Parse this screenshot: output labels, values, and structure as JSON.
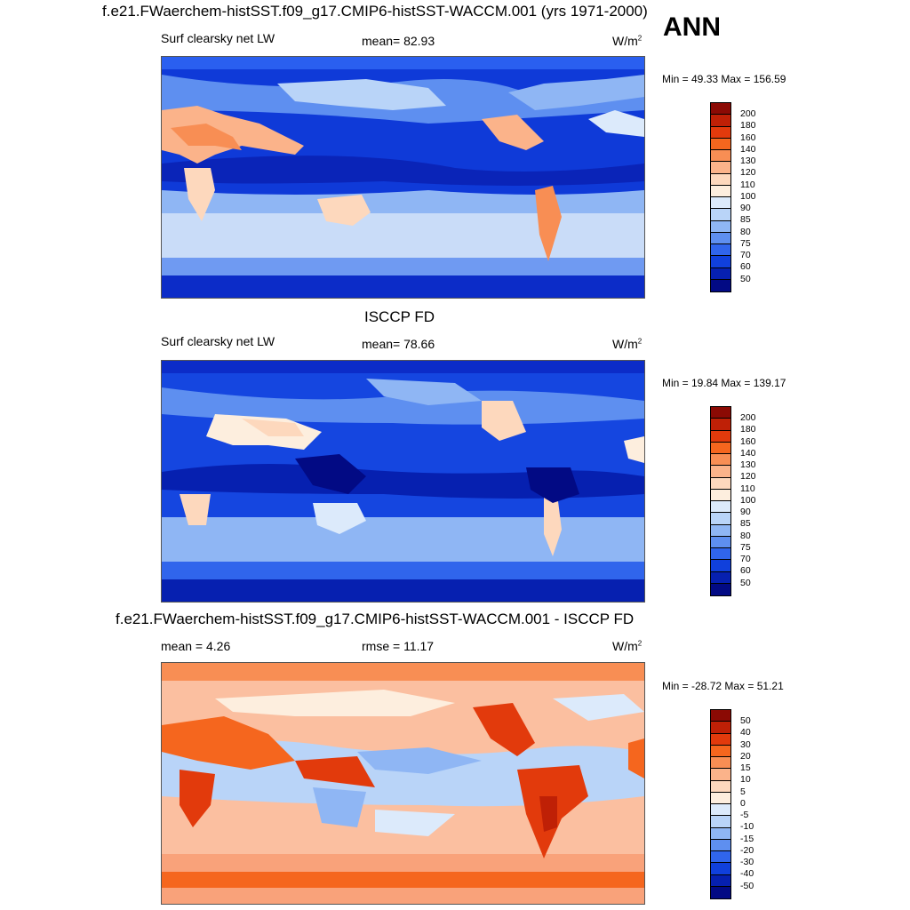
{
  "season": "ANN",
  "panels": [
    {
      "title": "f.e21.FWaerchem-histSST.f09_g17.CMIP6-histSST-WACCM.001 (yrs 1971-2000)",
      "left_label": "Surf clearsky net LW",
      "center_label": "mean=  82.93",
      "units": "W/m",
      "units_sup": "2",
      "minmax": "Min =  49.33 Max = 156.59",
      "colorbar_labels": [
        "200",
        "180",
        "160",
        "140",
        "130",
        "120",
        "110",
        "100",
        "90",
        "85",
        "80",
        "75",
        "70",
        "60",
        "50"
      ],
      "colorbar_colors": [
        "#8b0a04",
        "#bf2006",
        "#e23a0c",
        "#f5661e",
        "#f88e54",
        "#fbb38a",
        "#fdd8bd",
        "#fdeede",
        "#dceafb",
        "#b9d4f8",
        "#8fb6f4",
        "#5e8ff0",
        "#3065ec",
        "#1040dc",
        "#0620b0",
        "#020a84"
      ],
      "map_base": "#0f3ad8"
    },
    {
      "title": "ISCCP FD",
      "left_label": "Surf clearsky net LW",
      "center_label": "mean=  78.66",
      "units": "W/m",
      "units_sup": "2",
      "minmax": "Min =  19.84 Max = 139.17",
      "colorbar_labels": [
        "200",
        "180",
        "160",
        "140",
        "130",
        "120",
        "110",
        "100",
        "90",
        "85",
        "80",
        "75",
        "70",
        "60",
        "50"
      ],
      "colorbar_colors": [
        "#8b0a04",
        "#bf2006",
        "#e23a0c",
        "#f5661e",
        "#f88e54",
        "#fbb38a",
        "#fdd8bd",
        "#fdeede",
        "#dceafb",
        "#b9d4f8",
        "#8fb6f4",
        "#5e8ff0",
        "#3065ec",
        "#1040dc",
        "#0620b0",
        "#020a84"
      ],
      "map_base": "#1546e0"
    },
    {
      "title": "f.e21.FWaerchem-histSST.f09_g17.CMIP6-histSST-WACCM.001 - ISCCP FD",
      "left_label": "mean =   4.26",
      "center_label": "rmse =  11.17",
      "units": "W/m",
      "units_sup": "2",
      "minmax": "Min = -28.72 Max =  51.21",
      "colorbar_labels": [
        "50",
        "40",
        "30",
        "20",
        "15",
        "10",
        "5",
        "0",
        "-5",
        "-10",
        "-15",
        "-20",
        "-30",
        "-40",
        "-50"
      ],
      "colorbar_colors": [
        "#8b0a04",
        "#bf2006",
        "#e23a0c",
        "#f5661e",
        "#f88e54",
        "#fbb38a",
        "#fdd8bd",
        "#fdeede",
        "#dceafb",
        "#b9d4f8",
        "#8fb6f4",
        "#5e8ff0",
        "#3065ec",
        "#1040dc",
        "#0620b0",
        "#020a84"
      ],
      "map_base": "#fbbfa0"
    }
  ]
}
